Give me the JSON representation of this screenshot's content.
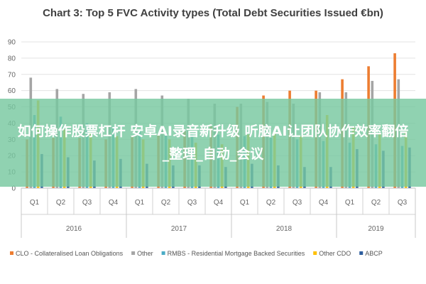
{
  "chart_data": {
    "type": "bar",
    "title": "Chart 3: Top 5 FVC Activity types (Total Debt Securities Issued €bn)",
    "ylim": [
      0,
      90
    ],
    "yticks": [
      0,
      10,
      20,
      30,
      40,
      50,
      60,
      70,
      80,
      90
    ],
    "grid": true,
    "legend_position": "bottom",
    "categories": [
      "Q1",
      "Q2",
      "Q3",
      "Q4",
      "Q1",
      "Q2",
      "Q3",
      "Q4",
      "Q1",
      "Q2",
      "Q3",
      "Q4",
      "Q1",
      "Q2",
      "Q3"
    ],
    "groups": [
      {
        "label": "2016",
        "count": 4
      },
      {
        "label": "2017",
        "count": 4
      },
      {
        "label": "2018",
        "count": 4
      },
      {
        "label": "2019",
        "count": 3
      }
    ],
    "series": [
      {
        "name": "CLO - Collateralised Loan Obligations",
        "color": "#ED7D31",
        "values": [
          30,
          31,
          31,
          30,
          32,
          33,
          35,
          38,
          50,
          57,
          60,
          60,
          67,
          75,
          83
        ]
      },
      {
        "name": "Other",
        "color": "#A5A5A5",
        "values": [
          68,
          61,
          58,
          59,
          61,
          57,
          55,
          52,
          52,
          53,
          52,
          59,
          59,
          66,
          67
        ]
      },
      {
        "name": "RMBS - Residential Mortgage Backed Securities",
        "color": "#4BACC6",
        "values": [
          45,
          44,
          40,
          38,
          36,
          34,
          33,
          33,
          32,
          31,
          30,
          29,
          28,
          27,
          26
        ]
      },
      {
        "name": "Other CDO",
        "color": "#FFC000",
        "values": [
          54,
          36,
          34,
          32,
          30,
          30,
          28,
          27,
          33,
          34,
          32,
          45,
          38,
          34,
          35
        ]
      },
      {
        "name": "ABCP",
        "color": "#2E5E9E",
        "values": [
          21,
          19,
          17,
          18,
          15,
          14,
          14,
          13,
          15,
          14,
          13,
          13,
          24,
          23,
          25
        ]
      }
    ]
  },
  "overlay": {
    "text": "如何操作股票杠杆 安卓AI录音新升级 听脑AI让团队协作效率翻倍_整理_自动_会议"
  }
}
